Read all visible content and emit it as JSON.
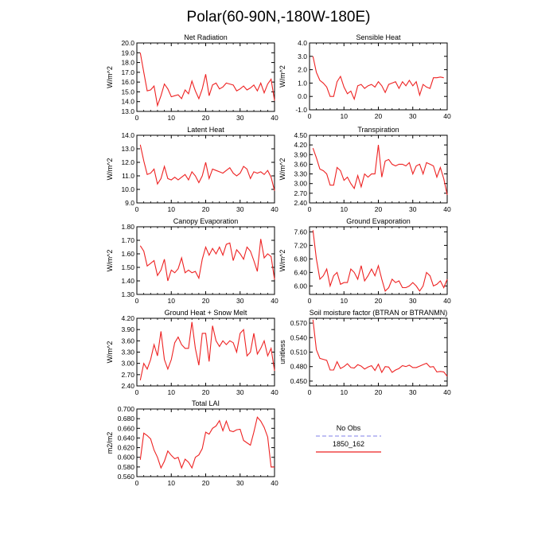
{
  "figure": {
    "title": "Polar(60-90N,-180W-180E)"
  },
  "legend": {
    "entries": [
      {
        "label": "No Obs",
        "color": "#9999ee",
        "style": "dashed"
      },
      {
        "label": "1850_162",
        "color": "#ee2222",
        "style": "solid"
      }
    ]
  },
  "chart_data": [
    {
      "type": "line",
      "title": "Net Radiation",
      "ylabel": "W/m^2",
      "xlim": [
        0,
        40
      ],
      "ylim": [
        13.0,
        20.0
      ],
      "xticks": [
        0,
        10,
        20,
        30,
        40
      ],
      "yticks": [
        13.0,
        14.0,
        15.0,
        16.0,
        17.0,
        18.0,
        19.0,
        20.0
      ],
      "ytick_labels": [
        "13.0",
        "14.0",
        "15.0",
        "16.0",
        "17.0",
        "18.0",
        "19.0",
        "20.0"
      ],
      "series": [
        {
          "color": "#ee2222",
          "x": [
            1,
            2,
            3,
            4,
            5,
            6,
            7,
            8,
            9,
            10,
            11,
            12,
            13,
            14,
            15,
            16,
            17,
            18,
            19,
            20,
            21,
            22,
            23,
            24,
            25,
            26,
            27,
            28,
            29,
            30,
            31,
            32,
            33,
            34,
            35,
            36,
            37,
            38,
            39,
            40
          ],
          "values": [
            19.0,
            17.0,
            15.1,
            15.2,
            15.6,
            13.6,
            14.6,
            15.8,
            15.3,
            14.5,
            14.6,
            14.7,
            14.3,
            15.2,
            14.8,
            16.1,
            15.1,
            14.3,
            15.3,
            16.8,
            14.6,
            15.7,
            15.9,
            15.3,
            15.5,
            15.9,
            15.8,
            15.7,
            15.1,
            15.3,
            15.6,
            15.2,
            15.4,
            15.7,
            15.1,
            15.9,
            14.9,
            15.8,
            16.3,
            14.1
          ]
        }
      ]
    },
    {
      "type": "line",
      "title": "Sensible Heat",
      "ylabel": "W/m^2",
      "xlim": [
        0,
        40
      ],
      "ylim": [
        -1.0,
        4.0
      ],
      "xticks": [
        0,
        10,
        20,
        30,
        40
      ],
      "yticks": [
        -1.0,
        0.0,
        1.0,
        2.0,
        3.0,
        4.0
      ],
      "ytick_labels": [
        "-1.0",
        "0.0",
        "1.0",
        "2.0",
        "3.0",
        "4.0"
      ],
      "series": [
        {
          "color": "#ee2222",
          "x": [
            1,
            2,
            3,
            4,
            5,
            6,
            7,
            8,
            9,
            10,
            11,
            12,
            13,
            14,
            15,
            16,
            17,
            18,
            19,
            20,
            21,
            22,
            23,
            24,
            25,
            26,
            27,
            28,
            29,
            30,
            31,
            32,
            33,
            34,
            35,
            36,
            37,
            38,
            39
          ],
          "values": [
            3.0,
            1.8,
            1.2,
            1.0,
            0.7,
            0.0,
            0.0,
            1.1,
            1.5,
            0.7,
            0.2,
            0.4,
            -0.2,
            0.8,
            0.9,
            0.6,
            0.8,
            0.9,
            0.7,
            1.1,
            0.8,
            0.3,
            0.9,
            1.0,
            1.1,
            0.6,
            1.1,
            0.8,
            1.2,
            0.8,
            1.1,
            0.1,
            0.9,
            0.7,
            0.6,
            1.4,
            1.4,
            1.45,
            1.4
          ]
        }
      ]
    },
    {
      "type": "line",
      "title": "Latent Heat",
      "ylabel": "W/m^2",
      "xlim": [
        0,
        40
      ],
      "ylim": [
        9.0,
        14.0
      ],
      "xticks": [
        0,
        10,
        20,
        30,
        40
      ],
      "yticks": [
        9.0,
        10.0,
        11.0,
        12.0,
        13.0,
        14.0
      ],
      "ytick_labels": [
        "9.0",
        "10.0",
        "11.0",
        "12.0",
        "13.0",
        "14.0"
      ],
      "series": [
        {
          "color": "#ee2222",
          "x": [
            1,
            2,
            3,
            4,
            5,
            6,
            7,
            8,
            9,
            10,
            11,
            12,
            13,
            14,
            15,
            16,
            17,
            18,
            19,
            20,
            21,
            22,
            23,
            24,
            25,
            26,
            27,
            28,
            29,
            30,
            31,
            32,
            33,
            34,
            35,
            36,
            37,
            38,
            39,
            40
          ],
          "values": [
            13.3,
            12.1,
            11.1,
            11.2,
            11.5,
            10.4,
            10.8,
            11.7,
            10.8,
            10.7,
            10.9,
            10.7,
            10.9,
            11.1,
            10.7,
            11.3,
            11.0,
            10.5,
            11.0,
            12.0,
            10.8,
            11.5,
            11.4,
            11.3,
            11.2,
            11.4,
            11.6,
            11.2,
            11.0,
            11.2,
            11.7,
            11.5,
            10.8,
            11.3,
            11.2,
            11.3,
            11.1,
            11.4,
            10.9,
            9.9
          ]
        }
      ]
    },
    {
      "type": "line",
      "title": "Transpiration",
      "ylabel": "W/m^2",
      "xlim": [
        0,
        40
      ],
      "ylim": [
        2.4,
        4.5
      ],
      "xticks": [
        0,
        10,
        20,
        30,
        40
      ],
      "yticks": [
        2.4,
        2.7,
        3.0,
        3.3,
        3.6,
        3.9,
        4.2,
        4.5
      ],
      "ytick_labels": [
        "2.40",
        "2.70",
        "3.00",
        "3.30",
        "3.60",
        "3.90",
        "4.20",
        "4.50"
      ],
      "series": [
        {
          "color": "#ee2222",
          "x": [
            1,
            2,
            3,
            4,
            5,
            6,
            7,
            8,
            9,
            10,
            11,
            12,
            13,
            14,
            15,
            16,
            17,
            18,
            19,
            20,
            21,
            22,
            23,
            24,
            25,
            26,
            27,
            28,
            29,
            30,
            31,
            32,
            33,
            34,
            35,
            36,
            37,
            38,
            39,
            40
          ],
          "values": [
            4.1,
            3.8,
            3.45,
            3.4,
            3.3,
            2.95,
            2.95,
            3.5,
            3.4,
            3.1,
            3.2,
            3.0,
            2.85,
            3.25,
            2.9,
            3.3,
            3.2,
            3.3,
            3.3,
            4.2,
            3.2,
            3.7,
            3.75,
            3.6,
            3.55,
            3.6,
            3.6,
            3.55,
            3.65,
            3.3,
            3.55,
            3.6,
            3.3,
            3.65,
            3.6,
            3.55,
            3.2,
            3.5,
            3.15,
            2.65
          ]
        }
      ]
    },
    {
      "type": "line",
      "title": "Canopy Evaporation",
      "ylabel": "W/m^2",
      "xlim": [
        0,
        40
      ],
      "ylim": [
        1.3,
        1.8
      ],
      "xticks": [
        0,
        10,
        20,
        30,
        40
      ],
      "yticks": [
        1.3,
        1.4,
        1.5,
        1.6,
        1.7,
        1.8
      ],
      "ytick_labels": [
        "1.30",
        "1.40",
        "1.50",
        "1.60",
        "1.70",
        "1.80"
      ],
      "series": [
        {
          "color": "#ee2222",
          "x": [
            1,
            2,
            3,
            4,
            5,
            6,
            7,
            8,
            9,
            10,
            11,
            12,
            13,
            14,
            15,
            16,
            17,
            18,
            19,
            20,
            21,
            22,
            23,
            24,
            25,
            26,
            27,
            28,
            29,
            30,
            31,
            32,
            33,
            34,
            35,
            36,
            37,
            38,
            39,
            40
          ],
          "values": [
            1.66,
            1.62,
            1.51,
            1.53,
            1.55,
            1.44,
            1.48,
            1.56,
            1.4,
            1.48,
            1.46,
            1.49,
            1.57,
            1.46,
            1.48,
            1.46,
            1.47,
            1.42,
            1.56,
            1.65,
            1.59,
            1.64,
            1.6,
            1.65,
            1.59,
            1.67,
            1.68,
            1.55,
            1.63,
            1.6,
            1.56,
            1.65,
            1.62,
            1.55,
            1.47,
            1.71,
            1.57,
            1.6,
            1.58,
            1.41
          ]
        }
      ]
    },
    {
      "type": "line",
      "title": "Ground Evaporation",
      "ylabel": "W/m^2",
      "xlim": [
        0,
        40
      ],
      "ylim": [
        5.75,
        7.75
      ],
      "xticks": [
        0,
        10,
        20,
        30,
        40
      ],
      "yticks": [
        6.0,
        6.4,
        6.8,
        7.2,
        7.6
      ],
      "ytick_labels": [
        "6.00",
        "6.40",
        "6.80",
        "7.20",
        "7.60"
      ],
      "series": [
        {
          "color": "#ee2222",
          "x": [
            1,
            2,
            3,
            4,
            5,
            6,
            7,
            8,
            9,
            10,
            11,
            12,
            13,
            14,
            15,
            16,
            17,
            18,
            19,
            20,
            21,
            22,
            23,
            24,
            25,
            26,
            27,
            28,
            29,
            30,
            31,
            32,
            33,
            34,
            35,
            36,
            37,
            38,
            39,
            40
          ],
          "values": [
            7.65,
            6.8,
            6.2,
            6.3,
            6.5,
            6.0,
            6.3,
            6.4,
            6.05,
            6.1,
            6.1,
            6.5,
            6.4,
            6.2,
            6.6,
            6.15,
            6.3,
            6.5,
            6.3,
            6.6,
            6.2,
            5.85,
            5.95,
            6.2,
            6.1,
            6.15,
            5.95,
            5.95,
            6.0,
            6.1,
            6.0,
            5.85,
            6.0,
            6.4,
            6.3,
            6.0,
            6.05,
            6.15,
            5.95,
            6.2
          ]
        }
      ]
    },
    {
      "type": "line",
      "title": "Ground Heat + Snow Melt",
      "ylabel": "W/m^2",
      "xlim": [
        0,
        40
      ],
      "ylim": [
        2.4,
        4.2
      ],
      "xticks": [
        0,
        10,
        20,
        30,
        40
      ],
      "yticks": [
        2.4,
        2.7,
        3.0,
        3.3,
        3.6,
        3.9,
        4.2
      ],
      "ytick_labels": [
        "2.40",
        "2.70",
        "3.00",
        "3.30",
        "3.60",
        "3.90",
        "4.20"
      ],
      "series": [
        {
          "color": "#ee2222",
          "x": [
            1,
            2,
            3,
            4,
            5,
            6,
            7,
            8,
            9,
            10,
            11,
            12,
            13,
            14,
            15,
            16,
            17,
            18,
            19,
            20,
            21,
            22,
            23,
            24,
            25,
            26,
            27,
            28,
            29,
            30,
            31,
            32,
            33,
            34,
            35,
            36,
            37,
            38,
            39,
            40
          ],
          "values": [
            2.55,
            3.0,
            2.85,
            3.1,
            3.5,
            3.2,
            3.85,
            3.1,
            2.85,
            3.1,
            3.55,
            3.7,
            3.5,
            3.4,
            3.4,
            4.1,
            3.4,
            2.95,
            3.8,
            3.8,
            3.05,
            4.0,
            3.6,
            3.45,
            3.6,
            3.5,
            3.6,
            3.55,
            3.3,
            3.8,
            3.9,
            3.2,
            3.3,
            3.8,
            3.25,
            3.4,
            3.6,
            3.2,
            3.4,
            2.8
          ]
        }
      ]
    },
    {
      "type": "line",
      "title": "Soil moisture factor (BTRAN or BTRANMN)",
      "ylabel": "unitless",
      "xlim": [
        0,
        40
      ],
      "ylim": [
        0.44,
        0.58
      ],
      "xticks": [
        0,
        10,
        20,
        30,
        40
      ],
      "yticks": [
        0.45,
        0.48,
        0.51,
        0.54,
        0.57
      ],
      "ytick_labels": [
        "0.450",
        "0.480",
        "0.510",
        "0.540",
        "0.570"
      ],
      "series": [
        {
          "color": "#ee2222",
          "x": [
            1,
            2,
            3,
            4,
            5,
            6,
            7,
            8,
            9,
            10,
            11,
            12,
            13,
            14,
            15,
            16,
            17,
            18,
            19,
            20,
            21,
            22,
            23,
            24,
            25,
            26,
            27,
            28,
            29,
            30,
            31,
            32,
            33,
            34,
            35,
            36,
            37,
            38,
            39,
            40
          ],
          "values": [
            0.577,
            0.515,
            0.497,
            0.495,
            0.493,
            0.473,
            0.473,
            0.49,
            0.476,
            0.48,
            0.486,
            0.478,
            0.477,
            0.484,
            0.481,
            0.475,
            0.479,
            0.482,
            0.472,
            0.485,
            0.468,
            0.48,
            0.479,
            0.468,
            0.473,
            0.476,
            0.482,
            0.48,
            0.483,
            0.478,
            0.478,
            0.481,
            0.484,
            0.487,
            0.479,
            0.48,
            0.469,
            0.47,
            0.469,
            0.46
          ]
        }
      ]
    },
    {
      "type": "line",
      "title": "Total LAI",
      "ylabel": "m2/m2",
      "xlim": [
        0,
        40
      ],
      "ylim": [
        0.56,
        0.7
      ],
      "xticks": [
        0,
        10,
        20,
        30,
        40
      ],
      "yticks": [
        0.56,
        0.58,
        0.6,
        0.62,
        0.64,
        0.66,
        0.68,
        0.7
      ],
      "ytick_labels": [
        "0.560",
        "0.580",
        "0.600",
        "0.620",
        "0.640",
        "0.660",
        "0.680",
        "0.700"
      ],
      "series": [
        {
          "color": "#ee2222",
          "x": [
            1,
            2,
            3,
            4,
            5,
            6,
            7,
            8,
            9,
            10,
            11,
            12,
            13,
            14,
            15,
            16,
            17,
            18,
            19,
            20,
            21,
            22,
            23,
            24,
            25,
            26,
            27,
            28,
            29,
            30,
            31,
            32,
            33,
            34,
            35,
            36,
            37,
            38,
            39,
            40
          ],
          "values": [
            0.595,
            0.65,
            0.645,
            0.638,
            0.615,
            0.6,
            0.578,
            0.592,
            0.613,
            0.604,
            0.597,
            0.6,
            0.578,
            0.596,
            0.59,
            0.578,
            0.6,
            0.605,
            0.618,
            0.652,
            0.648,
            0.66,
            0.665,
            0.676,
            0.655,
            0.675,
            0.655,
            0.653,
            0.657,
            0.658,
            0.635,
            0.63,
            0.625,
            0.652,
            0.683,
            0.675,
            0.662,
            0.642,
            0.58,
            0.58
          ]
        }
      ]
    }
  ]
}
